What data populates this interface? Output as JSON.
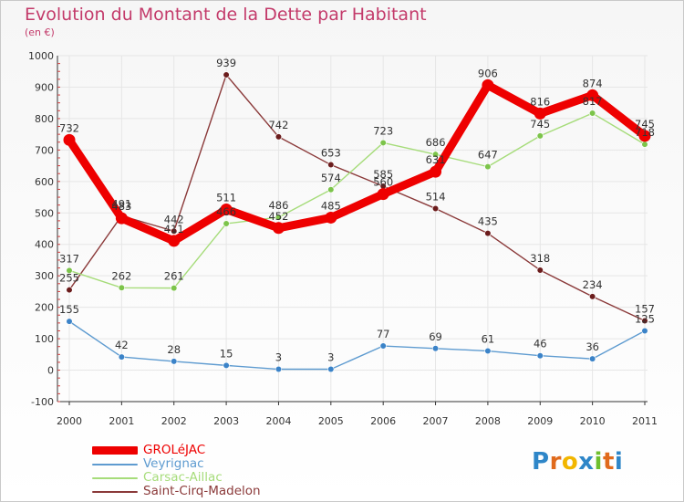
{
  "header": {
    "title": "Evolution du Montant de la Dette par Habitant",
    "unit": "(en €)"
  },
  "colors": {
    "title": "#c33a6a",
    "axis": "#333333",
    "grid": "#e6e6e6",
    "tick_marks": "#d23c3c"
  },
  "logo": {
    "text": "Proxiti",
    "letters": [
      "P",
      "r",
      "o",
      "x",
      "i",
      "t",
      "i"
    ]
  },
  "chart_data": {
    "type": "line",
    "title": "Evolution du Montant de la Dette par Habitant",
    "ylabel": "(en €)",
    "xlabel": "",
    "x": [
      "2000",
      "2001",
      "2002",
      "2003",
      "2004",
      "2005",
      "2006",
      "2007",
      "2008",
      "2009",
      "2010",
      "2011"
    ],
    "ylim": [
      -100,
      1000
    ],
    "yticks": [
      -100,
      0,
      100,
      200,
      300,
      400,
      500,
      600,
      700,
      800,
      900,
      1000
    ],
    "grid": true,
    "legend_position": "bottom-left",
    "series": [
      {
        "name": "GROLéJAC",
        "color": "#ee0000",
        "marker": "#ee0000",
        "values": [
          732,
          483,
          411,
          511,
          452,
          485,
          560,
          631,
          906,
          816,
          874,
          745
        ],
        "labels": [
          "732",
          "483",
          "411",
          "511",
          "452",
          "485",
          "560",
          "631",
          "906",
          "816",
          "874",
          "745"
        ]
      },
      {
        "name": "Veyrignac",
        "color": "#5e9bd0",
        "marker": "#3b83c8",
        "values": [
          155,
          42,
          28,
          15,
          3,
          3,
          77,
          69,
          61,
          46,
          36,
          125
        ],
        "labels": [
          "155",
          "42",
          "28",
          "15",
          "3",
          "3",
          "77",
          "69",
          "61",
          "46",
          "36",
          "125"
        ]
      },
      {
        "name": "Carsac-Aillac",
        "color": "#a6dc7a",
        "marker": "#7cc44a",
        "values": [
          317,
          262,
          261,
          466,
          486,
          574,
          723,
          686,
          647,
          745,
          817,
          718
        ],
        "labels": [
          "317",
          "262",
          "261",
          "466",
          "486",
          "574",
          "723",
          "686",
          "647",
          "745",
          "817",
          "718"
        ]
      },
      {
        "name": "Saint-Cirq-Madelon",
        "color": "#8b3a3a",
        "marker": "#6b1c1c",
        "values": [
          255,
          491,
          442,
          939,
          742,
          653,
          585,
          514,
          435,
          318,
          234,
          157
        ],
        "labels": [
          "255",
          "491",
          "442",
          "939",
          "742",
          "653",
          "585",
          "514",
          "435",
          "318",
          "234",
          "157"
        ]
      }
    ]
  }
}
